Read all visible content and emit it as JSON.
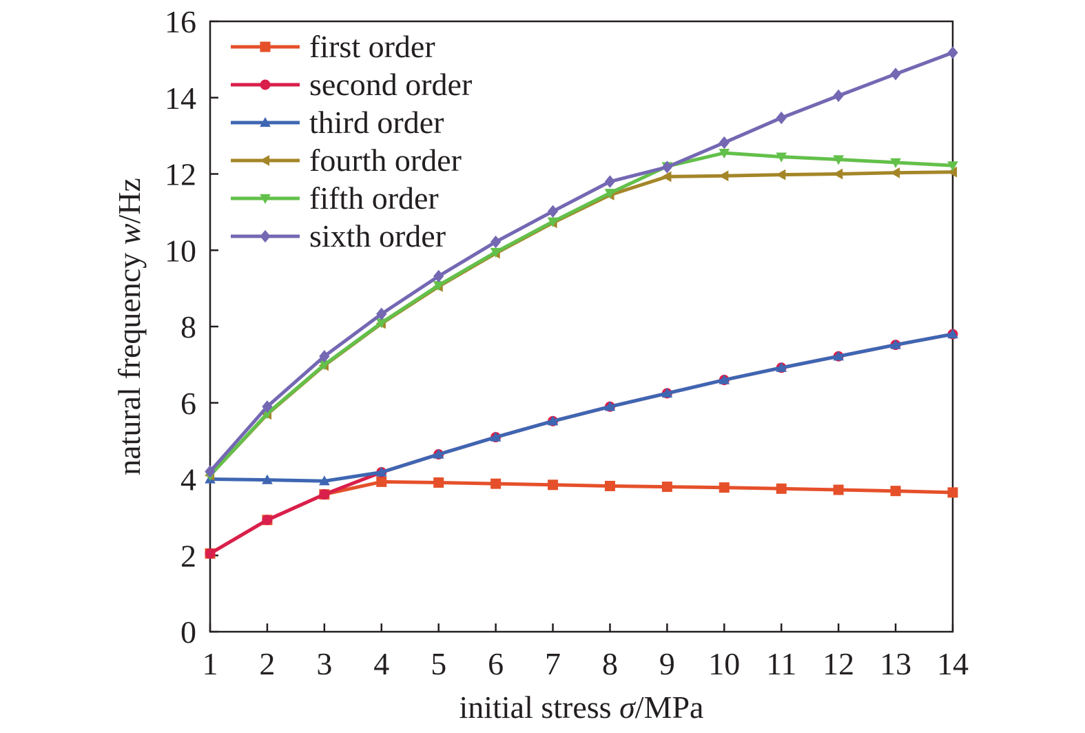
{
  "chart_data": {
    "type": "line",
    "title": "",
    "xlabel": {
      "prefix": "initial stress ",
      "symbol": "σ",
      "suffix": "/MPa"
    },
    "ylabel": {
      "prefix": "natural frequency ",
      "symbol": "w",
      "suffix": "/Hz"
    },
    "xlim": [
      1,
      14
    ],
    "ylim": [
      0,
      16
    ],
    "x": [
      1,
      2,
      3,
      4,
      5,
      6,
      7,
      8,
      9,
      10,
      11,
      12,
      13,
      14
    ],
    "xticks": [
      "1",
      "2",
      "3",
      "4",
      "5",
      "6",
      "7",
      "8",
      "9",
      "10",
      "11",
      "12",
      "13",
      "14"
    ],
    "yticks": [
      "0",
      "2",
      "4",
      "6",
      "8",
      "10",
      "12",
      "14",
      "16"
    ],
    "grid": false,
    "legend_position": "top-left",
    "series": [
      {
        "name": "first order",
        "color": "#e5502a",
        "marker": "square",
        "values": [
          2.05,
          2.93,
          3.6,
          3.93,
          3.91,
          3.88,
          3.85,
          3.82,
          3.8,
          3.78,
          3.75,
          3.72,
          3.69,
          3.65
        ]
      },
      {
        "name": "second order",
        "color": "#d91f4b",
        "marker": "circle",
        "values": [
          2.05,
          2.93,
          3.6,
          4.18,
          4.65,
          5.1,
          5.52,
          5.9,
          6.25,
          6.6,
          6.92,
          7.22,
          7.52,
          7.8
        ]
      },
      {
        "name": "third order",
        "color": "#3e66b2",
        "marker": "triangle-up",
        "values": [
          4.0,
          3.98,
          3.95,
          4.18,
          4.65,
          5.1,
          5.52,
          5.9,
          6.25,
          6.6,
          6.92,
          7.22,
          7.52,
          7.8
        ]
      },
      {
        "name": "fourth order",
        "color": "#a48629",
        "marker": "triangle-left",
        "values": [
          4.1,
          5.7,
          6.98,
          8.08,
          9.05,
          9.92,
          10.72,
          11.45,
          11.93,
          11.95,
          11.98,
          12.0,
          12.03,
          12.05
        ]
      },
      {
        "name": "fifth order",
        "color": "#63c04a",
        "marker": "triangle-down",
        "values": [
          4.1,
          5.72,
          7.0,
          8.1,
          9.08,
          9.95,
          10.75,
          11.5,
          12.2,
          12.55,
          12.45,
          12.38,
          12.3,
          12.22
        ]
      },
      {
        "name": "sixth order",
        "color": "#7468b3",
        "marker": "diamond",
        "values": [
          4.2,
          5.9,
          7.22,
          8.33,
          9.32,
          10.22,
          11.02,
          11.8,
          12.18,
          12.82,
          13.47,
          14.05,
          14.62,
          15.18
        ]
      }
    ]
  }
}
